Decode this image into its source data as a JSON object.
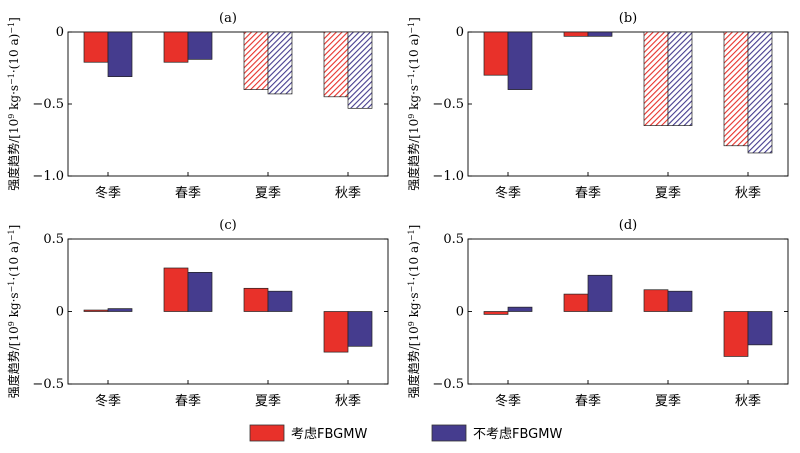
{
  "colors": {
    "series1": "#e8312a",
    "series2": "#453c8e"
  },
  "chart_data": {
    "type": "bar",
    "legend": {
      "placement": "bottom-center",
      "entries": [
        "考虑FBGMW",
        "不考虑FBGMW"
      ]
    },
    "ylabel": {
      "main": "强度趋势/[10",
      "sup1": "9",
      "mid": " kg·s",
      "sup2": "−1",
      "mid2": "·(10 a)",
      "sup3": "−1",
      "end": "]"
    },
    "categories": [
      "冬季",
      "春季",
      "夏季",
      "秋季"
    ],
    "panels": [
      {
        "title": "(a)",
        "ylim": [
          -1.0,
          0
        ],
        "yticks": [
          0,
          -0.5,
          -1.0
        ],
        "ytick_labels": [
          "0",
          "−0.5",
          "−1.0"
        ],
        "hatched": [
          false,
          false,
          true,
          true
        ],
        "series": [
          {
            "name": "考虑FBGMW",
            "values": [
              -0.21,
              -0.21,
              -0.4,
              -0.45
            ]
          },
          {
            "name": "不考虑FBGMW",
            "values": [
              -0.31,
              -0.19,
              -0.43,
              -0.53
            ]
          }
        ]
      },
      {
        "title": "(b)",
        "ylim": [
          -1.0,
          0
        ],
        "yticks": [
          0,
          -0.5,
          -1.0
        ],
        "ytick_labels": [
          "0",
          "−0.5",
          "−1.0"
        ],
        "hatched": [
          false,
          false,
          true,
          true
        ],
        "series": [
          {
            "name": "考虑FBGMW",
            "values": [
              -0.3,
              -0.03,
              -0.65,
              -0.79
            ]
          },
          {
            "name": "不考虑FBGMW",
            "values": [
              -0.4,
              -0.03,
              -0.65,
              -0.84
            ]
          }
        ]
      },
      {
        "title": "(c)",
        "ylim": [
          -0.5,
          0.5
        ],
        "yticks": [
          0.5,
          0,
          -0.5
        ],
        "ytick_labels": [
          "0.5",
          "0",
          "−0.5"
        ],
        "hatched": [
          false,
          false,
          false,
          false
        ],
        "series": [
          {
            "name": "考虑FBGMW",
            "values": [
              0.01,
              0.3,
              0.16,
              -0.28
            ]
          },
          {
            "name": "不考虑FBGMW",
            "values": [
              0.02,
              0.27,
              0.14,
              -0.24
            ]
          }
        ]
      },
      {
        "title": "(d)",
        "ylim": [
          -0.5,
          0.5
        ],
        "yticks": [
          0.5,
          0,
          -0.5
        ],
        "ytick_labels": [
          "0.5",
          "0",
          "−0.5"
        ],
        "hatched": [
          false,
          false,
          false,
          false
        ],
        "series": [
          {
            "name": "考虑FBGMW",
            "values": [
              -0.02,
              0.12,
              0.15,
              -0.31
            ]
          },
          {
            "name": "不考虑FBGMW",
            "values": [
              0.03,
              0.25,
              0.14,
              -0.23
            ]
          }
        ]
      }
    ]
  }
}
